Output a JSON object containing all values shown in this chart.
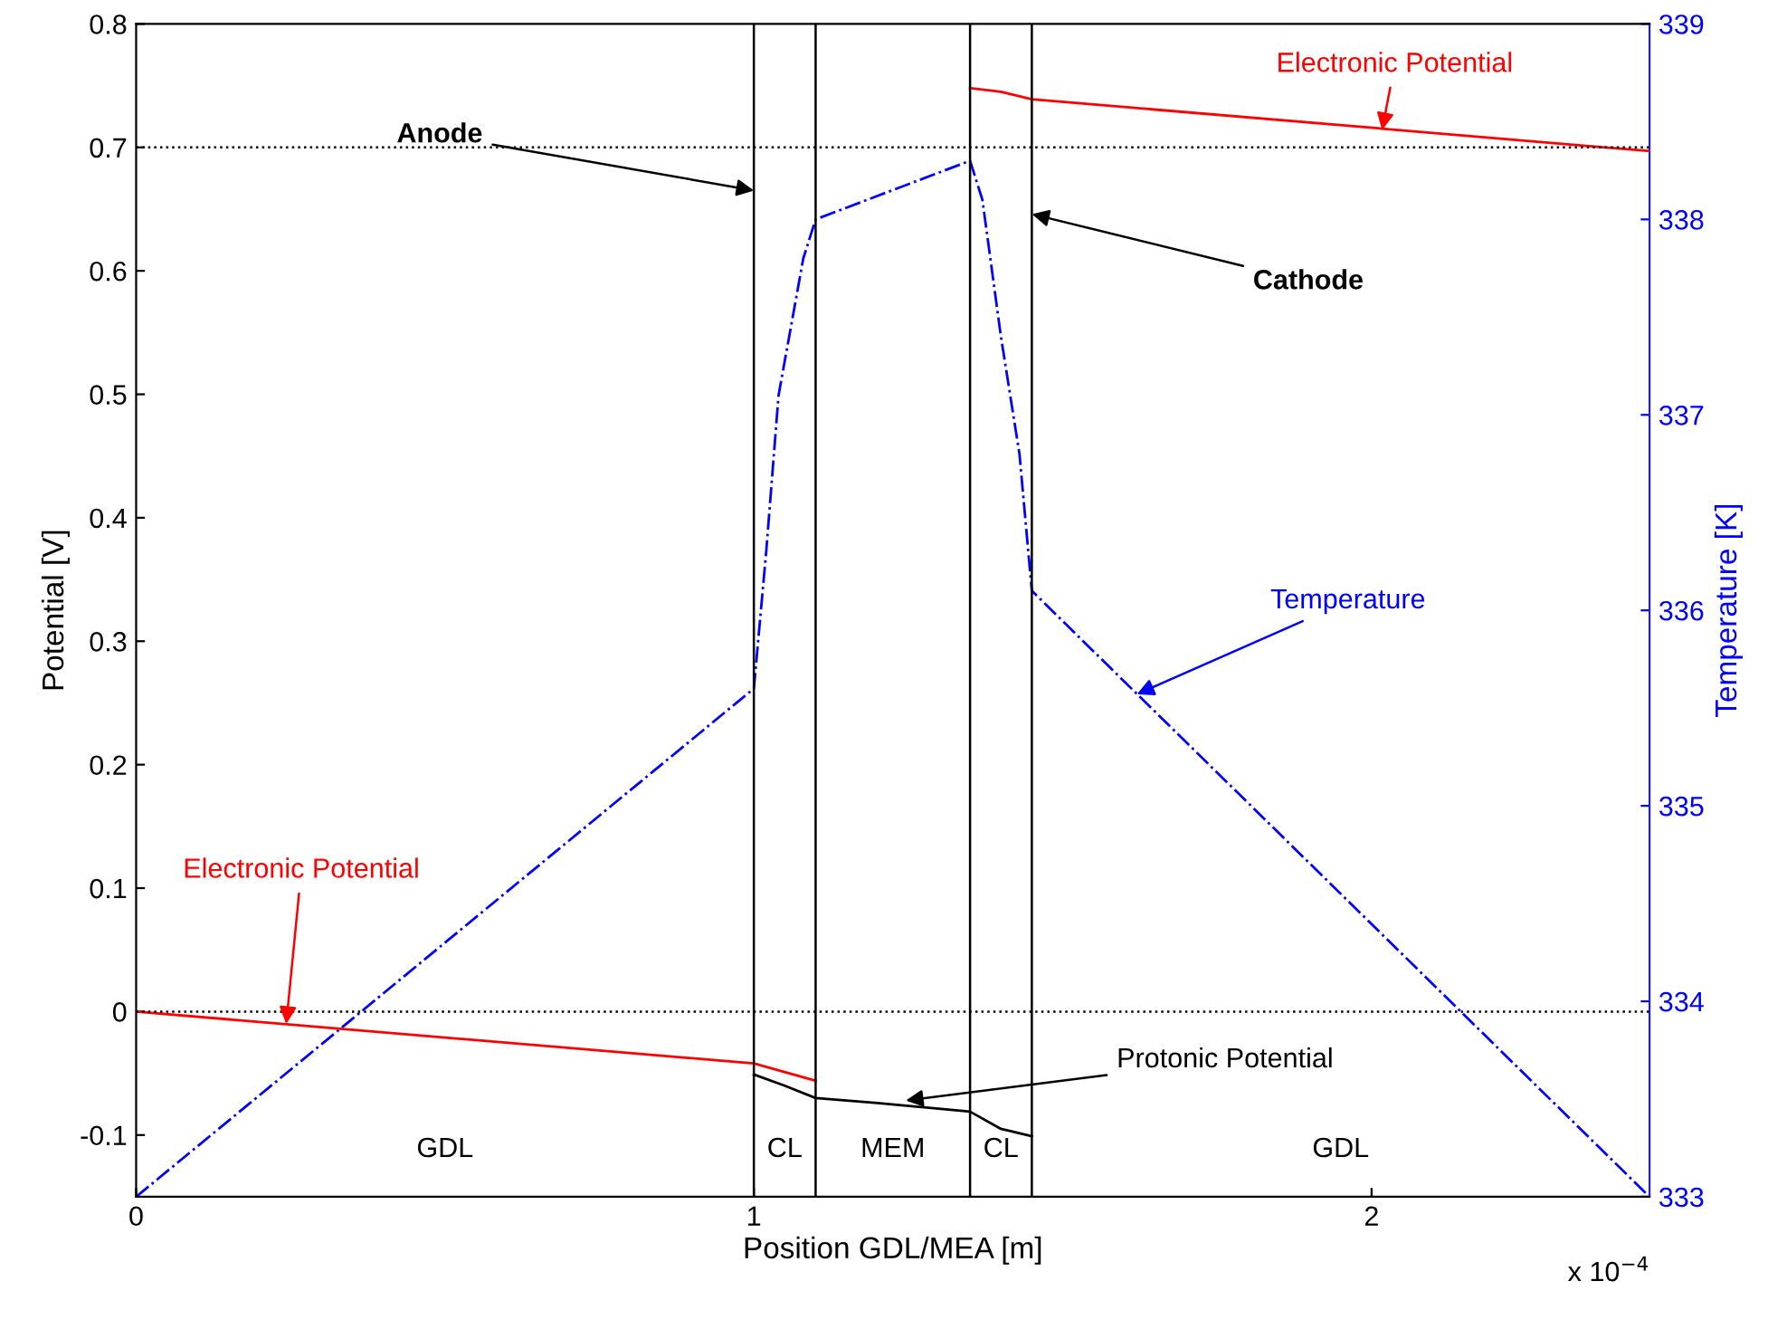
{
  "chart_data": {
    "type": "line",
    "xlabel": "Position GDL/MEA [m]",
    "ylabel": "Potential [V]",
    "y2label": "Temperature [K]",
    "xlim": [
      0,
      2.45
    ],
    "xticks": [
      0,
      1,
      2
    ],
    "ylim": [
      -0.15,
      0.8
    ],
    "yticks": [
      -0.1,
      0,
      0.1,
      0.2,
      0.3,
      0.4,
      0.5,
      0.6,
      0.7,
      0.8
    ],
    "y2lim": [
      333,
      339
    ],
    "y2ticks": [
      333,
      334,
      335,
      336,
      337,
      338,
      339
    ],
    "grid": false,
    "legend": false,
    "marker": "none",
    "series": [
      {
        "color": "#ff0000",
        "line_style": "solid",
        "x": [
          0,
          1.0,
          1.1
        ],
        "values": [
          0,
          -0.042,
          -0.056
        ]
      },
      {
        "color": "#ff0000",
        "line_style": "solid",
        "x": [
          1.35,
          1.4,
          1.45,
          2.45
        ],
        "values": [
          0.748,
          0.745,
          0.739,
          0.697
        ]
      },
      {
        "color": "#000000",
        "line_style": "solid",
        "x": [
          1.0,
          1.05,
          1.1,
          1.2,
          1.35,
          1.4,
          1.45
        ],
        "values": [
          -0.051,
          -0.06,
          -0.07,
          -0.074,
          -0.081,
          -0.095,
          -0.101
        ]
      },
      {
        "color": "#0000ff",
        "line_style": "dashdot",
        "axis": "y2",
        "x": [
          0,
          1.0,
          1.02,
          1.04,
          1.08,
          1.1,
          1.35,
          1.37,
          1.4,
          1.43,
          1.45,
          2.45
        ],
        "values": [
          333,
          335.6,
          336.3,
          337.1,
          337.8,
          338.0,
          338.3,
          338.1,
          337.4,
          336.8,
          336.1,
          333
        ]
      }
    ],
    "ref_lines": [
      {
        "axis": "x",
        "value": 1.0,
        "color": "#000000",
        "line_style": "solid"
      },
      {
        "axis": "x",
        "value": 1.1,
        "color": "#000000",
        "line_style": "solid"
      },
      {
        "axis": "x",
        "value": 1.35,
        "color": "#000000",
        "line_style": "solid"
      },
      {
        "axis": "x",
        "value": 1.45,
        "color": "#000000",
        "line_style": "solid"
      },
      {
        "axis": "y",
        "value": 0.7,
        "color": "#000000",
        "line_style": "dotted"
      },
      {
        "axis": "y",
        "value": 0,
        "color": "#000000",
        "line_style": "dotted"
      }
    ],
    "annotations": [
      {
        "text": "Anode",
        "x": 1.0,
        "y": 0.665
      },
      {
        "text": "Cathode",
        "x": 1.45,
        "y": 0.646
      },
      {
        "text": "Electronic Potential",
        "x": 2.017,
        "y": 0.714
      },
      {
        "text": "Electronic Potential",
        "x": 0.243,
        "y": -0.01
      },
      {
        "text": "Temperature",
        "x": 1.62,
        "y": 0.257
      },
      {
        "text": "Protonic Potential",
        "x": 1.246,
        "y": -0.072
      },
      "GDL",
      "CL",
      "MEM",
      "CL",
      "GDL",
      "x 10$^{−4}$"
    ]
  }
}
